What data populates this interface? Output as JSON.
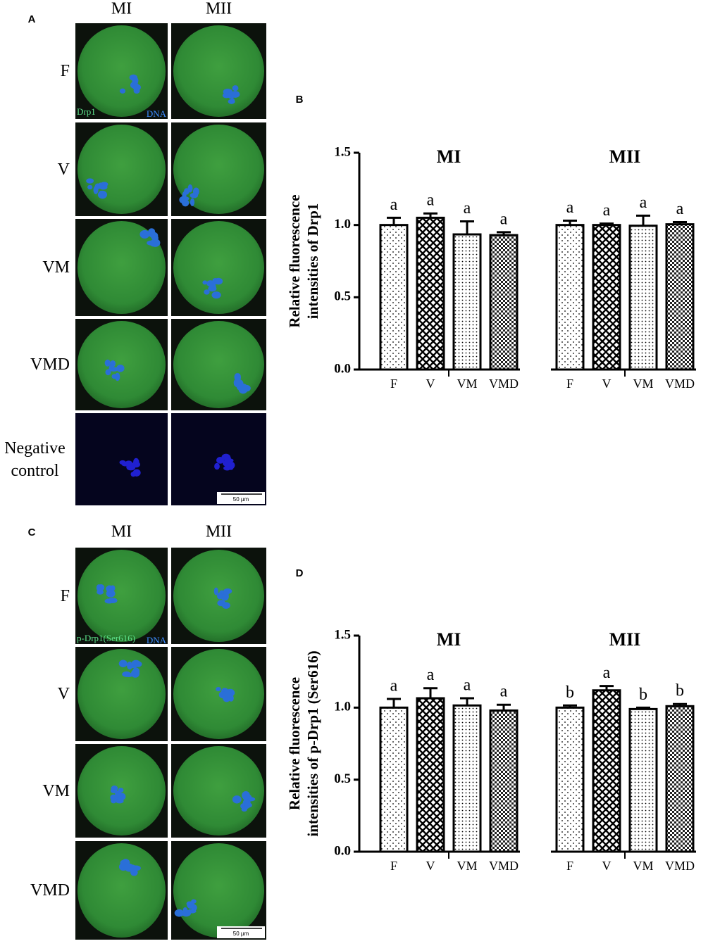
{
  "figure": {
    "panel_a": {
      "label": "A",
      "columns": [
        "MI",
        "MII"
      ],
      "rows": [
        "F",
        "V",
        "VM",
        "VMD",
        "Negative control"
      ],
      "stain_labels": [
        "Drp1",
        "DNA"
      ],
      "scale_bar": "50 µm"
    },
    "panel_c": {
      "label": "C",
      "columns": [
        "MI",
        "MII"
      ],
      "rows": [
        "F",
        "V",
        "VM",
        "VMD"
      ],
      "stain_labels": [
        "p-Drp1(Ser616)",
        "DNA"
      ],
      "scale_bar": "50 µm"
    }
  },
  "chart_data": [
    {
      "type": "bar",
      "panel_label": "B",
      "ylabel": [
        "Relative fluorescence",
        "intensities of Drp1"
      ],
      "ylim": [
        0,
        1.5
      ],
      "yticks": [
        {
          "value": 0,
          "label": "0.0"
        },
        0.5,
        {
          "value": 1,
          "label": "1.0"
        },
        1.5
      ],
      "groups": [
        {
          "name": "MI",
          "categories": [
            "F",
            "V",
            "VM",
            "VMD"
          ],
          "values": [
            1.0,
            1.05,
            0.935,
            0.93
          ],
          "errors": [
            0.05,
            0.03,
            0.09,
            0.02
          ],
          "letters": [
            "a",
            "a",
            "a",
            "a"
          ]
        },
        {
          "name": "MII",
          "categories": [
            "F",
            "V",
            "VM",
            "VMD"
          ],
          "values": [
            1.0,
            1.0,
            0.995,
            1.005
          ],
          "errors": [
            0.03,
            0.01,
            0.07,
            0.015
          ],
          "letters": [
            "a",
            "a",
            "a",
            "a"
          ]
        }
      ]
    },
    {
      "type": "bar",
      "panel_label": "D",
      "ylabel": [
        "Relative fluorescence",
        "intensities of p-Drp1 (Ser616)"
      ],
      "ylim": [
        0,
        1.5
      ],
      "yticks": [
        {
          "value": 0,
          "label": "0.0"
        },
        0.5,
        {
          "value": 1,
          "label": "1.0"
        },
        1.5
      ],
      "groups": [
        {
          "name": "MI",
          "categories": [
            "F",
            "V",
            "VM",
            "VMD"
          ],
          "values": [
            1.0,
            1.065,
            1.015,
            0.98
          ],
          "errors": [
            0.06,
            0.07,
            0.05,
            0.04
          ],
          "letters": [
            "a",
            "a",
            "a",
            "a"
          ]
        },
        {
          "name": "MII",
          "categories": [
            "F",
            "V",
            "VM",
            "VMD"
          ],
          "values": [
            1.0,
            1.12,
            0.99,
            1.01
          ],
          "errors": [
            0.015,
            0.03,
            0.01,
            0.015
          ],
          "letters": [
            "b",
            "a",
            "b",
            "b"
          ]
        }
      ]
    }
  ]
}
